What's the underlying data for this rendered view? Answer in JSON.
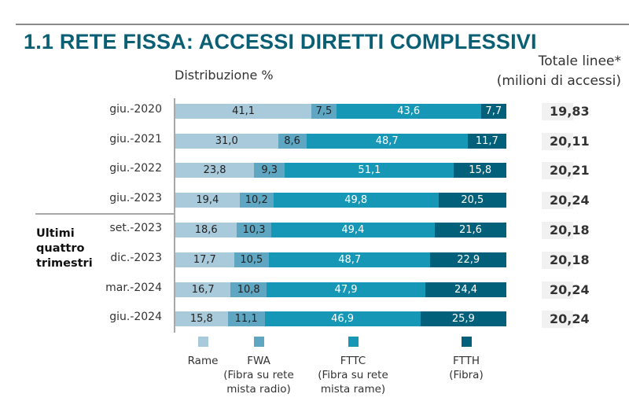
{
  "title": "1.1 RETE FISSA: ACCESSI DIRETTI COMPLESSIVI",
  "subtitle": "Distribuzione %",
  "totals_header": [
    "Totale linee*",
    "(milioni di accessi)"
  ],
  "group_label": [
    "Ultimi",
    "quattro",
    "trimestri"
  ],
  "chart_data": {
    "type": "bar",
    "orientation": "horizontal",
    "stacked": true,
    "categories": [
      "giu.-2020",
      "giu.-2021",
      "giu.-2022",
      "giu.-2023",
      "set.-2023",
      "dic.-2023",
      "mar.-2024",
      "giu.-2024"
    ],
    "series": [
      {
        "name": "Rame",
        "label_lines": [
          "Rame"
        ],
        "color": "#a9cadb",
        "text_color": "#222222",
        "values": [
          "41,1",
          "31,0",
          "23,8",
          "19,4",
          "18,6",
          "17,7",
          "16,7",
          "15,8"
        ]
      },
      {
        "name": "FWA",
        "label_lines": [
          "FWA",
          "(Fibra su rete",
          "mista radio)"
        ],
        "color": "#5fa6c3",
        "text_color": "#222222",
        "values": [
          "7,5",
          "8,6",
          "9,3",
          "10,2",
          "10,3",
          "10,5",
          "10,8",
          "11,1"
        ]
      },
      {
        "name": "FTTC",
        "label_lines": [
          "FTTC",
          "(Fibra su rete",
          "mista rame)"
        ],
        "color": "#1797b6",
        "text_color": "#ffffff",
        "values": [
          "43,6",
          "48,7",
          "51,1",
          "49,8",
          "49,4",
          "48,7",
          "47,9",
          "46,9"
        ]
      },
      {
        "name": "FTTH",
        "label_lines": [
          "FTTH",
          "(Fibra)"
        ],
        "color": "#03607a",
        "text_color": "#ffffff",
        "values": [
          "7,7",
          "11,7",
          "15,8",
          "20,5",
          "21,6",
          "22,9",
          "24,4",
          "25,9"
        ]
      }
    ],
    "totals": [
      "19,83",
      "20,11",
      "20,21",
      "20,24",
      "20,18",
      "20,18",
      "20,24",
      "20,24"
    ],
    "xlim": [
      0,
      100
    ],
    "grid": false,
    "legend_placement": "bottom"
  }
}
